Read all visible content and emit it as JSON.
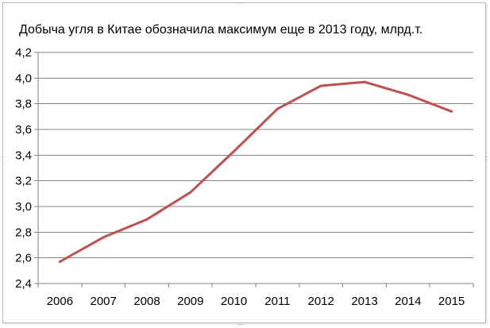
{
  "chart_data": {
    "type": "line",
    "title": "Добыча угля в Китае обозначила максимум еще в 2013 году, млрд.т.",
    "xlabel": "",
    "ylabel": "",
    "categories": [
      "2006",
      "2007",
      "2008",
      "2009",
      "2010",
      "2011",
      "2012",
      "2013",
      "2014",
      "2015"
    ],
    "series": [
      {
        "values": [
          2.57,
          2.76,
          2.9,
          3.11,
          3.43,
          3.76,
          3.94,
          3.97,
          3.87,
          3.74
        ]
      }
    ],
    "ylim": [
      2.4,
      4.2
    ],
    "yticks": [
      "2,4",
      "2,6",
      "2,8",
      "3,0",
      "3,2",
      "3,4",
      "3,6",
      "3,8",
      "4,0",
      "4,2"
    ],
    "grid": true,
    "legend": "none",
    "colors": {
      "line": "#c0504d",
      "grid": "#868686",
      "axis": "#868686"
    }
  }
}
